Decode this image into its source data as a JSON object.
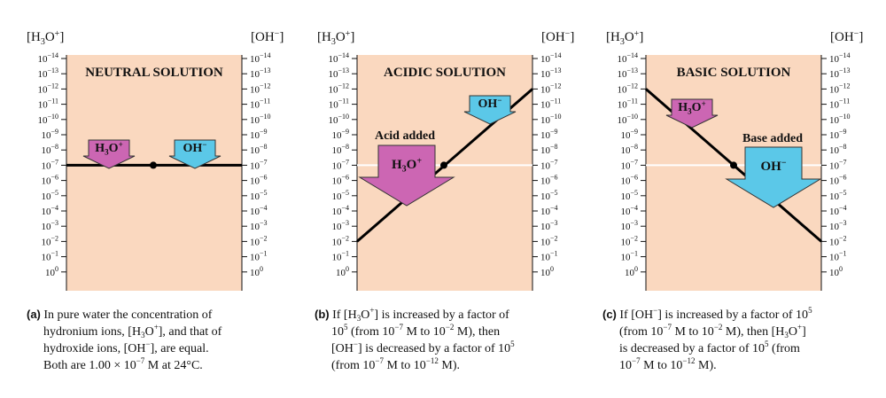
{
  "panels": [
    {
      "id": "a",
      "title": "NEUTRAL SOLUTION",
      "left_header": "[H3O+]",
      "right_header": "[OH−]",
      "caption_tag": "(a)",
      "caption_lines": [
        "In pure water the concentration of",
        "hydronium ions, [H3O+], and that of",
        "hydroxide ions, [OH−], are equal.",
        "Both are 1.00 × 10−7 M at 24°C."
      ],
      "arrows": [
        {
          "label": "H3O+",
          "color": "#cc66b3",
          "kind": "small"
        },
        {
          "label": "OH−",
          "color": "#5bc8e8",
          "kind": "small"
        }
      ]
    },
    {
      "id": "b",
      "title": "ACIDIC SOLUTION",
      "left_header": "[H3O+]",
      "right_header": "[OH−]",
      "annotation": "Acid added",
      "caption_tag": "(b)",
      "caption_lines": [
        "If [H3O+] is increased by a factor of",
        "105 (from 10−7 M to 10−2 M), then",
        "[OH−] is decreased by a factor of 105",
        "(from 10−7 M to 10−12 M)."
      ],
      "arrows": [
        {
          "label": "H3O+",
          "color": "#cc66b3",
          "kind": "large"
        },
        {
          "label": "OH−",
          "color": "#5bc8e8",
          "kind": "small"
        }
      ]
    },
    {
      "id": "c",
      "title": "BASIC SOLUTION",
      "left_header": "[H3O+]",
      "right_header": "[OH−]",
      "annotation": "Base added",
      "caption_tag": "(c)",
      "caption_lines": [
        "If [OH−] is increased by a factor of 105",
        "(from 10−7 M to 10−2 M), then [H3O+]",
        "is decreased by a factor of 105 (from",
        "10−7 M to 10−12 M)."
      ],
      "arrows": [
        {
          "label": "H3O+",
          "color": "#cc66b3",
          "kind": "small"
        },
        {
          "label": "OH−",
          "color": "#5bc8e8",
          "kind": "large"
        }
      ]
    }
  ],
  "scale": {
    "left_exponents": [
      -14,
      -13,
      -12,
      -11,
      -10,
      -9,
      -8,
      -7,
      -6,
      -5,
      -4,
      -3,
      -2,
      -1,
      0
    ],
    "right_exponents": [
      -14,
      -13,
      -12,
      -11,
      -10,
      -9,
      -8,
      -7,
      -6,
      -5,
      -4,
      -3,
      -2,
      -1,
      0
    ],
    "tick_base": "10"
  },
  "lines": {
    "neutral": {
      "h3o_exp": -7,
      "oh_exp": -7
    },
    "acidic": {
      "h3o_exp_start": -7,
      "h3o_exp_end": -2,
      "oh_exp_end": -12
    },
    "basic": {
      "oh_exp_start": -7,
      "oh_exp_end": -2,
      "h3o_exp_end": -12
    }
  },
  "colors": {
    "panel_bg": "#fad8bf",
    "h3o_arrow": "#cc66b3",
    "oh_arrow": "#5bc8e8",
    "line": "#000000",
    "reference_line": "#ffffff"
  }
}
